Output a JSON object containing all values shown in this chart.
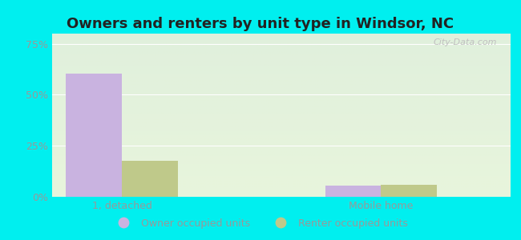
{
  "title": "Owners and renters by unit type in Windsor, NC",
  "categories": [
    "1, detached",
    "Mobile home"
  ],
  "owner_values": [
    0.605,
    0.055
  ],
  "renter_values": [
    0.175,
    0.06
  ],
  "owner_color": "#c9b3e0",
  "renter_color": "#bfc98a",
  "ylim": [
    0,
    0.8
  ],
  "yticks": [
    0.0,
    0.25,
    0.5,
    0.75
  ],
  "ytick_labels": [
    "0%",
    "25%",
    "50%",
    "75%"
  ],
  "bg_top": "#e0f0dc",
  "bg_bottom": "#e8f5dc",
  "outer_bg": "#00efef",
  "bar_width": 0.28,
  "group_positions": [
    0.35,
    1.65
  ],
  "xlim": [
    0,
    2.3
  ],
  "legend_labels": [
    "Owner occupied units",
    "Renter occupied units"
  ],
  "watermark": "City-Data.com",
  "title_fontsize": 13,
  "tick_fontsize": 9,
  "legend_fontsize": 9,
  "grid_color": "#ffffff",
  "tick_color": "#999999",
  "title_color": "#222222"
}
